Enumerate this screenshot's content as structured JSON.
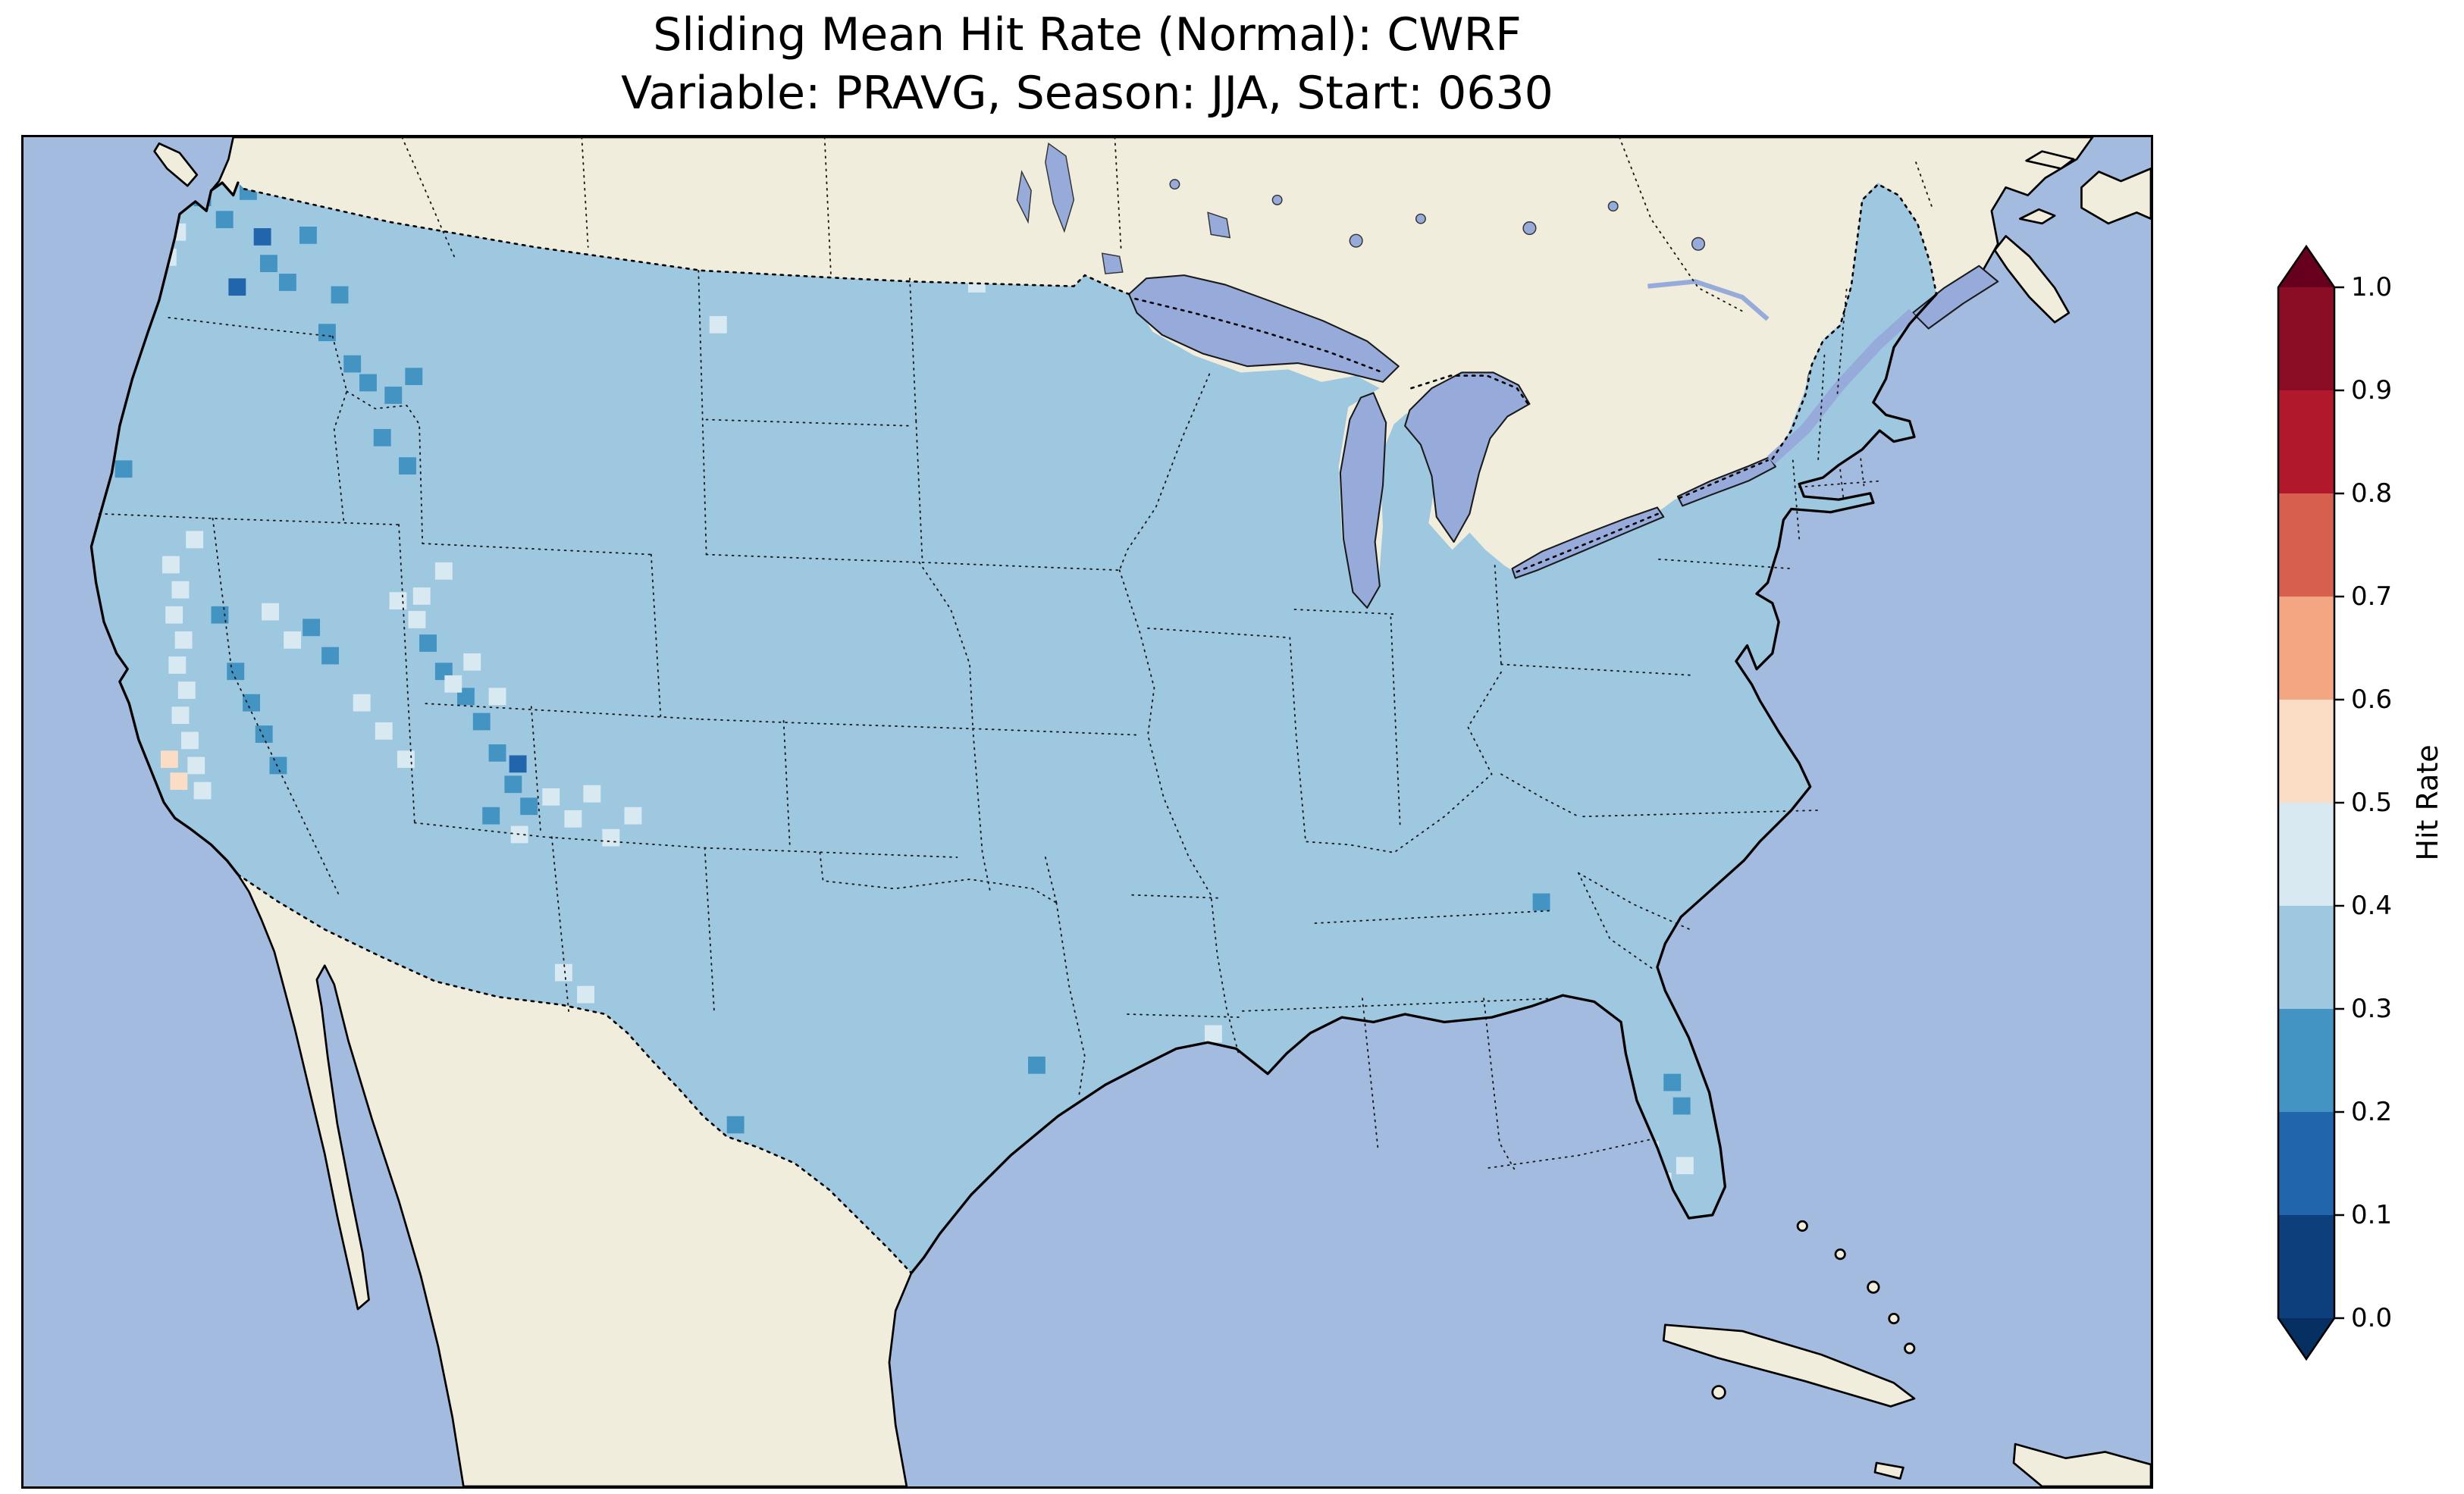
{
  "title": {
    "line1": "Sliding Mean Hit Rate (Normal): CWRF",
    "line2": "Variable: PRAVG, Season: JJA, Start: 0630"
  },
  "map": {
    "colors": {
      "ocean": "#a3bbdf",
      "water": "#96abd9",
      "land": "#f0eddc",
      "coastline": "#000000"
    }
  },
  "colorbar": {
    "label": "Hit Rate",
    "ticks": [
      "0.0",
      "0.1",
      "0.2",
      "0.3",
      "0.4",
      "0.5",
      "0.6",
      "0.7",
      "0.8",
      "0.9",
      "1.0"
    ],
    "bins": [
      {
        "label": "<0.0",
        "color": "#053061",
        "extend": "min"
      },
      {
        "label": "0.0-0.1",
        "color": "#0d3f7d"
      },
      {
        "label": "0.1-0.2",
        "color": "#2166ac"
      },
      {
        "label": "0.2-0.3",
        "color": "#4393c3"
      },
      {
        "label": "0.3-0.4",
        "color": "#9dc8e0"
      },
      {
        "label": "0.4-0.5",
        "color": "#d8e9f2"
      },
      {
        "label": "0.5-0.6",
        "color": "#fbdcc4"
      },
      {
        "label": "0.6-0.7",
        "color": "#f4a582"
      },
      {
        "label": "0.7-0.8",
        "color": "#d6604d"
      },
      {
        "label": "0.8-0.9",
        "color": "#b2182b"
      },
      {
        "label": "0.9-1.0",
        "color": "#8a0c25"
      },
      {
        "label": ">1.0",
        "color": "#67001f",
        "extend": "max"
      }
    ]
  },
  "chart_data": {
    "type": "heatmap",
    "subtype": "geographic-grid-map",
    "title": "Sliding Mean Hit Rate (Normal): CWRF",
    "subtitle": "Variable: PRAVG, Season: JJA, Start: 0630",
    "metric": "Sliding Mean Hit Rate (Normal)",
    "model": "CWRF",
    "variable": "PRAVG",
    "season": "JJA",
    "start": "0630",
    "region": "Contiguous United States",
    "colorbar_label": "Hit Rate",
    "value_range": [
      0.0,
      1.0
    ],
    "tick_step": 0.1,
    "dominant_bin": "0.3-0.4",
    "pattern_summary": "Hit rate is ~0.3-0.4 over nearly all of CONUS; scattered 0.2-0.3 cells over the Pacific Northwest, Sierra Nevada, Great Basin and Colorado Plateau; pale 0.4-0.5 cells along California's Central Valley, the Intermountain West, New Mexico and south Florida; one or two 0.5-0.6 cells in central California.",
    "cell_size": 11,
    "cells": [
      {
        "bin_index": 2,
        "range": "0.1-0.2",
        "points": [
          [
            146,
            58
          ],
          [
            130,
            90
          ],
          [
            308,
            394
          ]
        ]
      },
      {
        "bin_index": 3,
        "range": "0.2-0.3",
        "points": [
          [
            108,
            33
          ],
          [
            122,
            47
          ],
          [
            137,
            29
          ],
          [
            150,
            75
          ],
          [
            162,
            87
          ],
          [
            175,
            57
          ],
          [
            187,
            119
          ],
          [
            195,
            95
          ],
          [
            203,
            139
          ],
          [
            213,
            151
          ],
          [
            222,
            186
          ],
          [
            229,
            159
          ],
          [
            238,
            204
          ],
          [
            242,
            147
          ],
          [
            58,
            206
          ],
          [
            119,
            299
          ],
          [
            129,
            335
          ],
          [
            139,
            355
          ],
          [
            147,
            375
          ],
          [
            156,
            395
          ],
          [
            177,
            307
          ],
          [
            189,
            325
          ],
          [
            251,
            317
          ],
          [
            261,
            335
          ],
          [
            275,
            351
          ],
          [
            285,
            367
          ],
          [
            291,
            427
          ],
          [
            295,
            387
          ],
          [
            305,
            407
          ],
          [
            315,
            421
          ],
          [
            446,
            624
          ],
          [
            637,
            586
          ],
          [
            957,
            482
          ],
          [
            1040,
            597
          ],
          [
            1046,
            612
          ]
        ]
      },
      {
        "bin_index": 5,
        "range": "0.4-0.5",
        "points": [
          [
            86,
            71
          ],
          [
            88,
            267
          ],
          [
            90,
            299
          ],
          [
            92,
            55
          ],
          [
            92,
            331
          ],
          [
            94,
            283
          ],
          [
            94,
            363
          ],
          [
            96,
            315
          ],
          [
            98,
            347
          ],
          [
            100,
            379
          ],
          [
            103,
            251
          ],
          [
            104,
            395
          ],
          [
            108,
            411
          ],
          [
            151,
            297
          ],
          [
            165,
            315
          ],
          [
            209,
            355
          ],
          [
            223,
            373
          ],
          [
            232,
            290
          ],
          [
            237,
            391
          ],
          [
            244,
            302
          ],
          [
            247,
            287
          ],
          [
            261,
            271
          ],
          [
            267,
            343
          ],
          [
            279,
            329
          ],
          [
            295,
            351
          ],
          [
            309,
            439
          ],
          [
            329,
            415
          ],
          [
            337,
            527
          ],
          [
            343,
            429
          ],
          [
            343,
            555
          ],
          [
            351,
            541
          ],
          [
            355,
            413
          ],
          [
            367,
            441
          ],
          [
            381,
            427
          ],
          [
            435,
            114
          ],
          [
            599,
            88
          ],
          [
            749,
            566
          ],
          [
            1026,
            640
          ],
          [
            1034,
            660
          ],
          [
            1048,
            650
          ]
        ]
      },
      {
        "bin_index": 6,
        "range": "0.5-0.6",
        "points": [
          [
            87,
            391
          ],
          [
            93,
            405
          ]
        ]
      }
    ]
  }
}
